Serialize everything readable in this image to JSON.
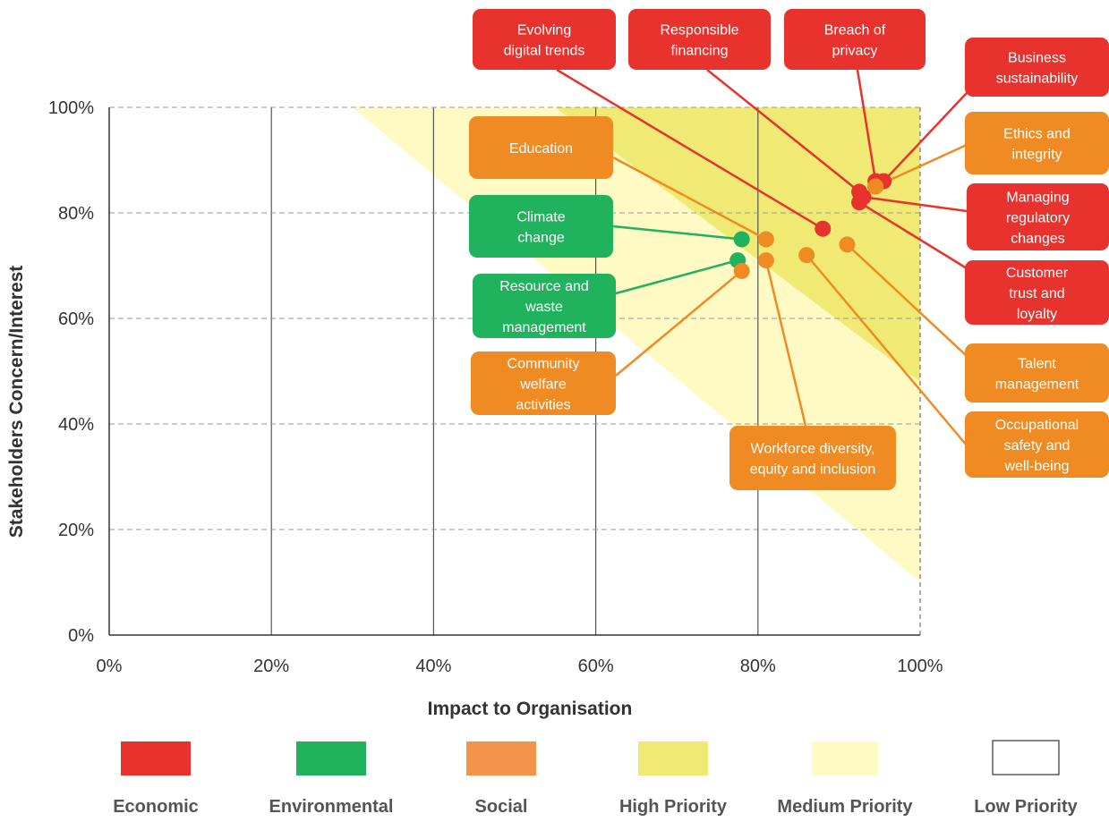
{
  "chart_data": {
    "type": "scatter",
    "title": "",
    "xlabel": "Impact to Organisation",
    "ylabel": "Stakeholders Concern/Interest",
    "xlim": [
      0,
      100
    ],
    "ylim": [
      0,
      100
    ],
    "x_ticks": [
      "0%",
      "20%",
      "40%",
      "60%",
      "80%",
      "100%"
    ],
    "y_ticks": [
      "0%",
      "20%",
      "40%",
      "60%",
      "80%",
      "100%"
    ],
    "grid": {
      "x": "solid",
      "y": "dashed"
    },
    "regions": [
      {
        "name": "Medium Priority",
        "color": "#FFF9C4",
        "polygon": [
          [
            30,
            100
          ],
          [
            100,
            100
          ],
          [
            100,
            10
          ]
        ]
      },
      {
        "name": "High Priority",
        "color": "#F0EA74",
        "polygon": [
          [
            55,
            100
          ],
          [
            100,
            100
          ],
          [
            100,
            48
          ]
        ]
      }
    ],
    "categories": {
      "Economic": "#E8322E",
      "Environmental": "#21B25E",
      "Social": "#F08A23"
    },
    "points": [
      {
        "label": "Evolving digital trends",
        "category": "Economic",
        "x": 88,
        "y": 77
      },
      {
        "label": "Responsible financing",
        "category": "Economic",
        "x": 92.5,
        "y": 84
      },
      {
        "label": "Breach of privacy",
        "category": "Economic",
        "x": 94.5,
        "y": 86
      },
      {
        "label": "Business sustainability",
        "category": "Economic",
        "x": 95.5,
        "y": 86
      },
      {
        "label": "Ethics and integrity",
        "category": "Social",
        "x": 94.5,
        "y": 85
      },
      {
        "label": "Managing regulatory changes",
        "category": "Economic",
        "x": 93,
        "y": 83
      },
      {
        "label": "Customer trust and loyalty",
        "category": "Economic",
        "x": 92.5,
        "y": 82
      },
      {
        "label": "Talent management",
        "category": "Social",
        "x": 91,
        "y": 74
      },
      {
        "label": "Occupational safety and well-being",
        "category": "Social",
        "x": 86,
        "y": 72
      },
      {
        "label": "Workforce diversity, equity and inclusion",
        "category": "Social",
        "x": 81,
        "y": 71
      },
      {
        "label": "Education",
        "category": "Social",
        "x": 81,
        "y": 75
      },
      {
        "label": "Climate change",
        "category": "Environmental",
        "x": 78,
        "y": 75
      },
      {
        "label": "Resource and waste management",
        "category": "Environmental",
        "x": 77.5,
        "y": 71
      },
      {
        "label": "Community welfare activities",
        "category": "Social",
        "x": 78,
        "y": 69
      }
    ],
    "annotations": [
      {
        "point": 0,
        "lines": [
          "Evolving",
          "digital trends"
        ]
      },
      {
        "point": 1,
        "lines": [
          "Responsible",
          "financing"
        ]
      },
      {
        "point": 2,
        "lines": [
          "Breach of",
          "privacy"
        ]
      },
      {
        "point": 3,
        "lines": [
          "Business",
          "sustainability"
        ]
      },
      {
        "point": 4,
        "lines": [
          "Ethics and",
          "integrity"
        ]
      },
      {
        "point": 5,
        "lines": [
          "Managing",
          "regulatory",
          "changes"
        ]
      },
      {
        "point": 6,
        "lines": [
          "Customer",
          "trust and",
          "loyalty"
        ]
      },
      {
        "point": 7,
        "lines": [
          "Talent",
          "management"
        ]
      },
      {
        "point": 8,
        "lines": [
          "Occupational",
          "safety and",
          "well-being"
        ]
      },
      {
        "point": 9,
        "lines": [
          "Workforce diversity,",
          "equity and inclusion"
        ]
      },
      {
        "point": 10,
        "lines": [
          "Education"
        ]
      },
      {
        "point": 11,
        "lines": [
          "Climate",
          "change"
        ]
      },
      {
        "point": 12,
        "lines": [
          "Resource and",
          "waste",
          "management"
        ]
      },
      {
        "point": 13,
        "lines": [
          "Community",
          "welfare",
          "activities"
        ]
      }
    ],
    "legend": {
      "placement": "bottom",
      "items": [
        {
          "label": "Economic",
          "color": "#E8322E",
          "outline": false
        },
        {
          "label": "Environmental",
          "color": "#21B25E",
          "outline": false
        },
        {
          "label": "Social",
          "color": "#F5934A",
          "outline": false
        },
        {
          "label": "High Priority",
          "color": "#F0EA74",
          "outline": false
        },
        {
          "label": "Medium Priority",
          "color": "#FFF9C4",
          "outline": false
        },
        {
          "label": "Low Priority",
          "color": "#FFFFFF",
          "outline": true
        }
      ]
    }
  }
}
